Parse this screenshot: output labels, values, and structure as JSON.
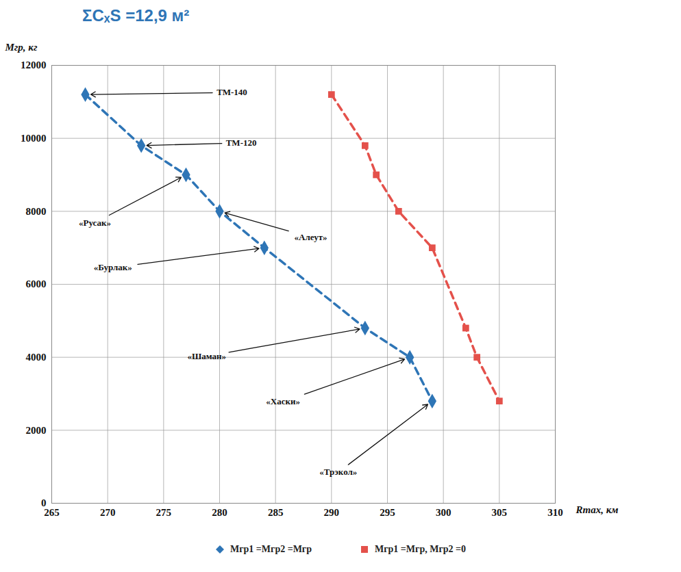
{
  "chart_data": {
    "type": "line",
    "title": "ΣCₓS =12,9 м²",
    "x_label": "Rmax, км",
    "y_label": "Mгр, кг",
    "xlim": [
      265,
      310
    ],
    "xticks": [
      265,
      270,
      275,
      280,
      285,
      290,
      295,
      300,
      305,
      310
    ],
    "ylim": [
      0,
      12000
    ],
    "yticks": [
      0,
      2000,
      4000,
      6000,
      8000,
      10000,
      12000
    ],
    "grid": true,
    "legend": "bottom",
    "line_style": "dashed",
    "series": [
      {
        "name": "Mгр1 =Mгр2 =Mгр",
        "color": "#2e75b6",
        "marker": "diamond",
        "x": [
          268,
          273,
          277,
          280,
          284,
          293,
          297,
          299
        ],
        "values": [
          11200,
          9800,
          9000,
          8000,
          7000,
          4800,
          4000,
          2800
        ]
      },
      {
        "name": "Mгр1 =Mгр, Mгр2 =0",
        "color": "#e4514b",
        "marker": "square",
        "x": [
          290,
          293,
          294,
          296,
          299,
          302,
          303,
          305
        ],
        "values": [
          11200,
          9800,
          9000,
          8000,
          7000,
          4800,
          4000,
          2800
        ]
      }
    ],
    "annotations": [
      {
        "text": "ТМ-140",
        "x": 268,
        "y": 11200
      },
      {
        "text": "ТМ-120",
        "x": 273,
        "y": 9800
      },
      {
        "text": "«Русак»",
        "x": 277,
        "y": 9000
      },
      {
        "text": "«Алеут»",
        "x": 280,
        "y": 8000
      },
      {
        "text": "«Бурлак»",
        "x": 284,
        "y": 7000
      },
      {
        "text": "«Шаман»",
        "x": 293,
        "y": 4800
      },
      {
        "text": "«Хаски»",
        "x": 297,
        "y": 4000
      },
      {
        "text": "«Трэкол»",
        "x": 299,
        "y": 2800
      }
    ]
  }
}
